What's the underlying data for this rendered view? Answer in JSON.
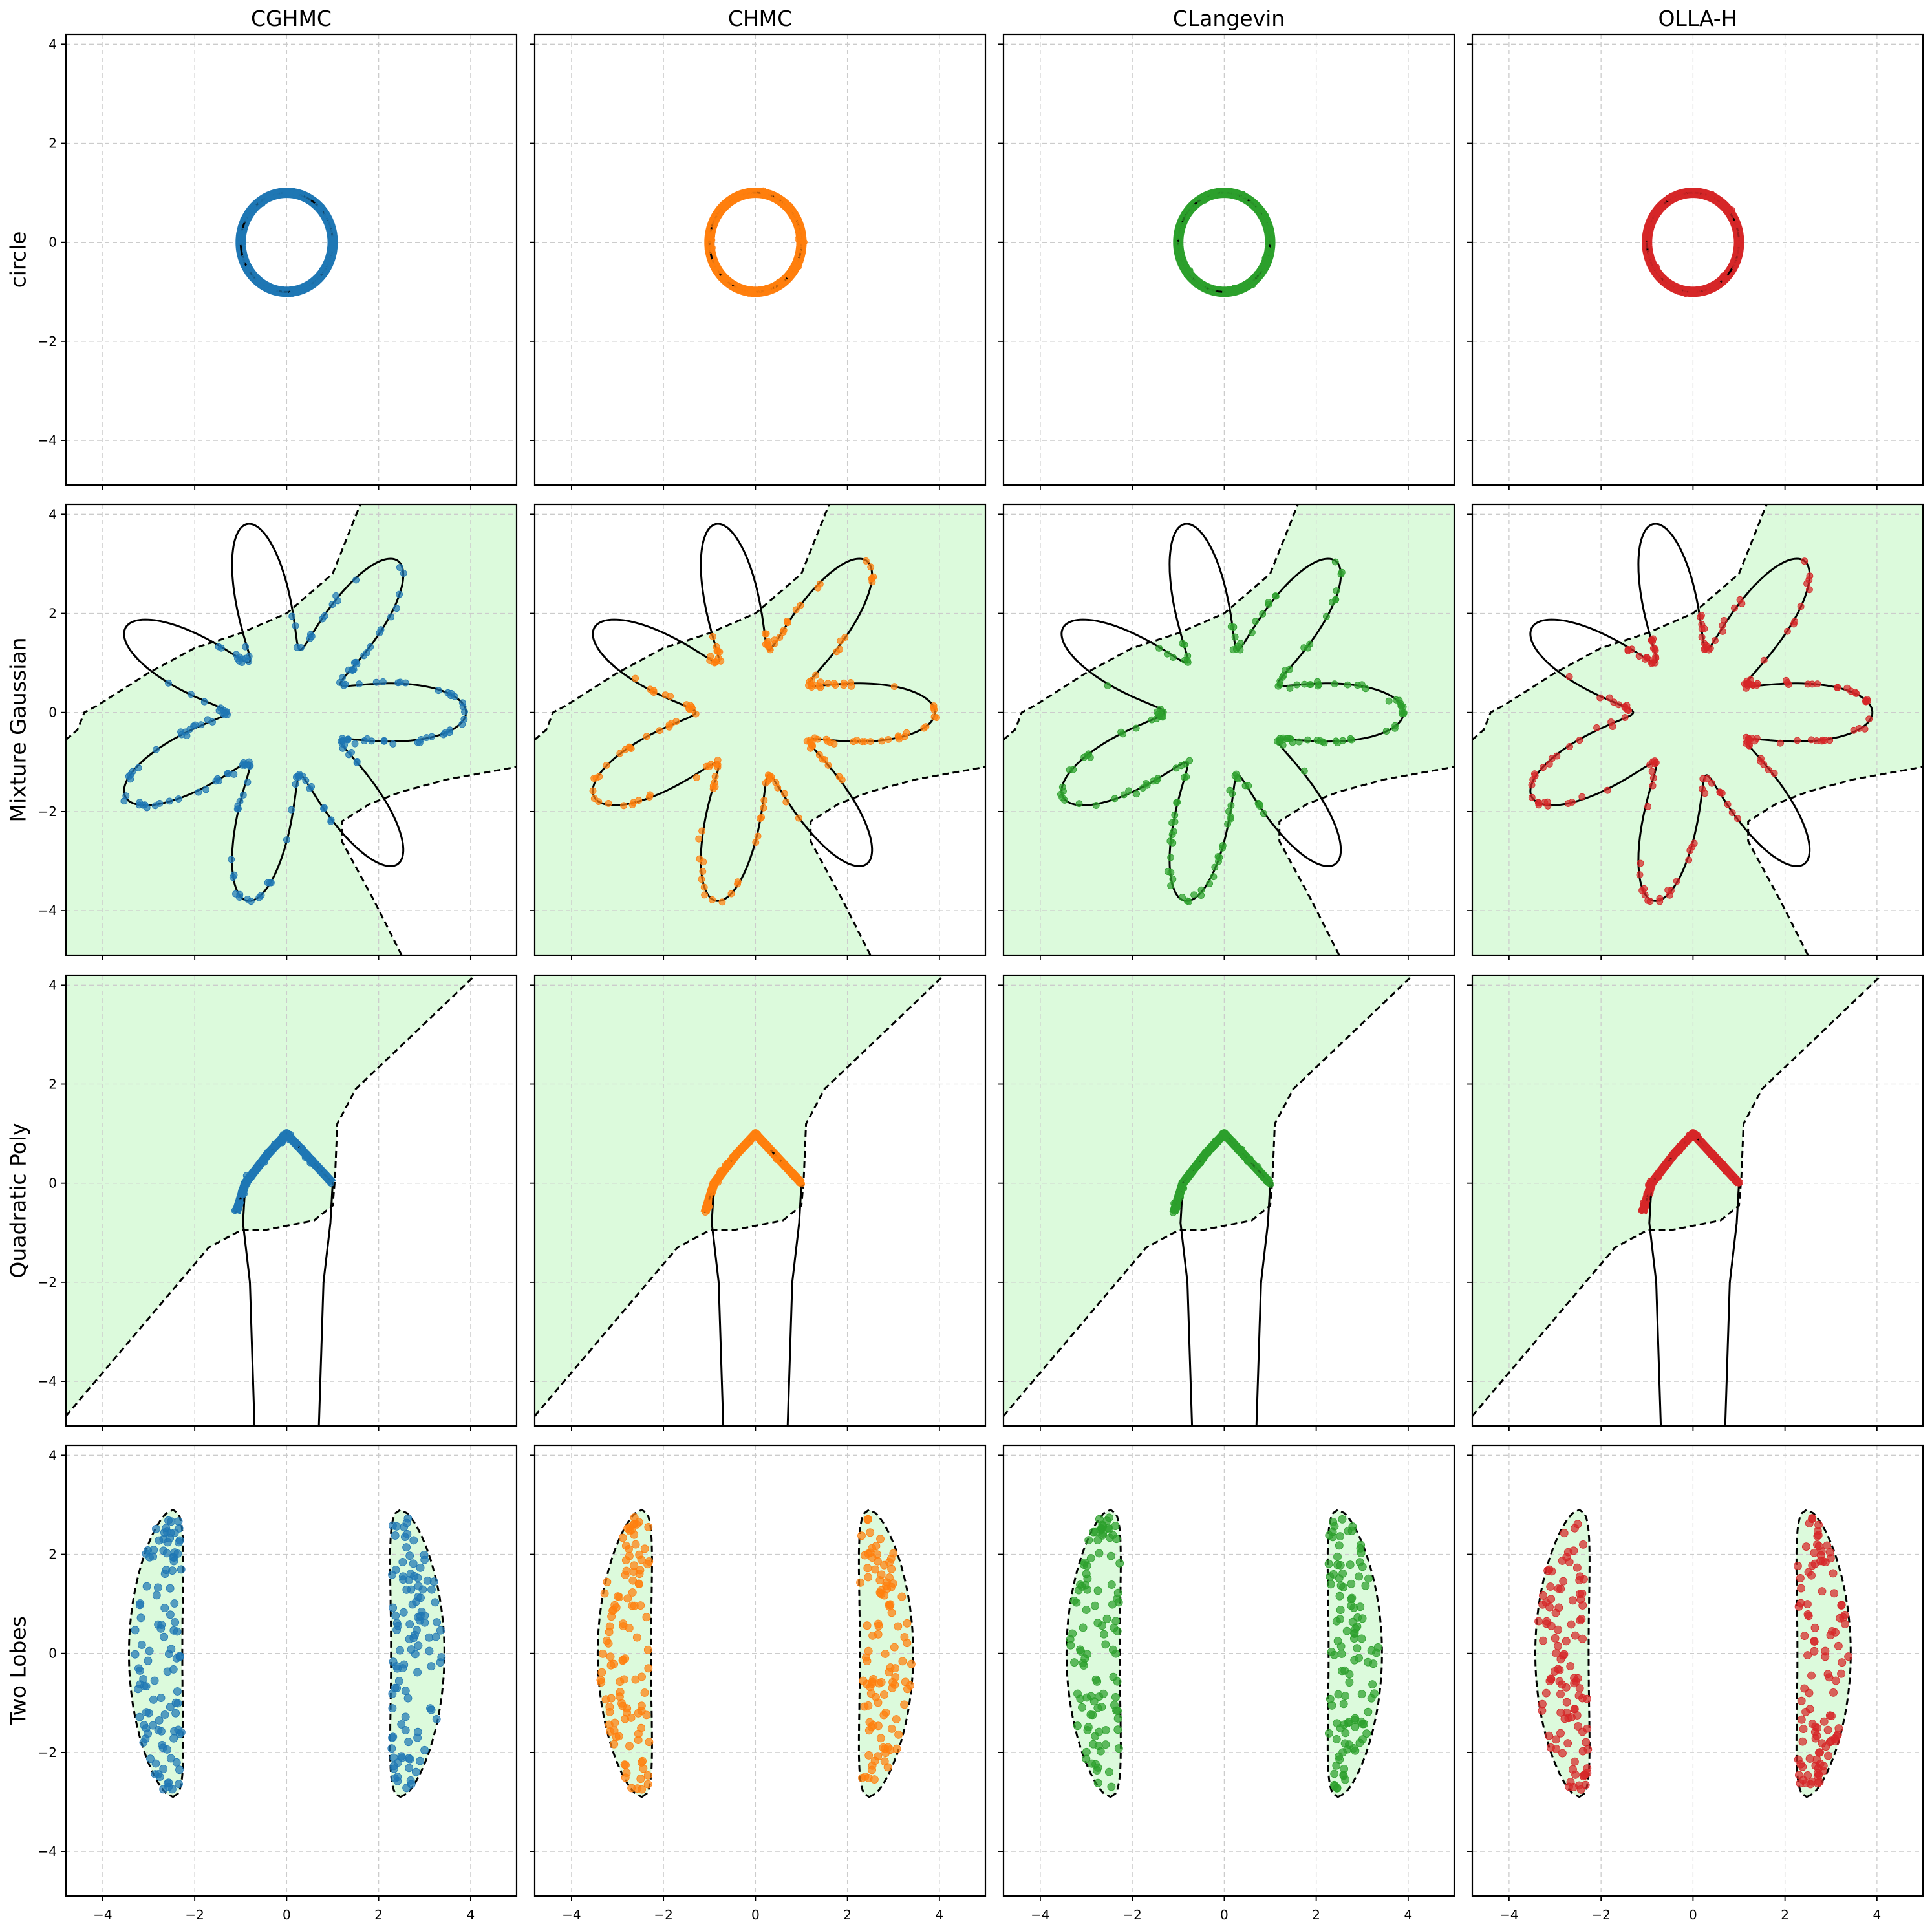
{
  "chart_data": {
    "type": "scatter",
    "layout": "4x4 grid of panels, shared axes",
    "column_titles": [
      "CGHMC",
      "CHMC",
      "CLangevin",
      "OLLA-H"
    ],
    "row_labels": [
      "circle",
      "Mixture Gaussian",
      "Quadratic Poly",
      "Two Lobes"
    ],
    "xlim": [
      -4.8,
      5.0
    ],
    "ylim": [
      -4.9,
      4.2
    ],
    "x_ticks": [
      -4,
      -2,
      0,
      2,
      4
    ],
    "y_ticks": [
      -4,
      -2,
      0,
      2,
      4
    ],
    "x_tick_labels": [
      "−4",
      "−2",
      "0",
      "2",
      "4"
    ],
    "y_tick_labels": [
      "−4",
      "−2",
      "0",
      "2",
      "4"
    ],
    "grid": true,
    "grid_style": "dashed light gray",
    "series_colors": {
      "CGHMC": "#1f77b4",
      "CHMC": "#ff7f0e",
      "CLangevin": "#2ca02c",
      "OLLA-H": "#d62728"
    },
    "feasible_region_fill": "#dcfadc",
    "rows": [
      {
        "name": "circle",
        "constraint": "unit circle x^2 + y^2 = 1 (solid black)",
        "inequality_region": "none",
        "circle_center": [
          0,
          0
        ],
        "circle_radius": 1.0,
        "samples_per_panel": 140,
        "sample_location": "on the unit circle"
      },
      {
        "name": "Mixture Gaussian",
        "constraint": "seven-petal star curve r(t) = 2.6 + 1.3 cos(7t) (solid black)",
        "inequality_region": "green shaded region between two dashed boundary curves",
        "upper_dashed_boundary_points": [
          [
            -4.8,
            -0.55
          ],
          [
            -4.55,
            -0.35
          ],
          [
            -4.4,
            0.0
          ],
          [
            -4.1,
            0.15
          ],
          [
            -3.0,
            0.8
          ],
          [
            -2.0,
            1.3
          ],
          [
            -1.0,
            1.6
          ],
          [
            0.0,
            2.0
          ],
          [
            0.5,
            2.4
          ],
          [
            1.0,
            2.8
          ],
          [
            1.6,
            4.2
          ]
        ],
        "lower_dashed_boundary_points": [
          [
            2.5,
            -4.9
          ],
          [
            1.9,
            -3.8
          ],
          [
            1.2,
            -2.6
          ],
          [
            1.2,
            -2.2
          ],
          [
            1.8,
            -1.85
          ],
          [
            2.5,
            -1.6
          ],
          [
            3.5,
            -1.35
          ],
          [
            5.0,
            -1.1
          ]
        ],
        "samples_per_panel": 180,
        "sample_location": "on the star curve inside the shaded region"
      },
      {
        "name": "Quadratic Poly",
        "constraint": "solid black arch with two descending legs",
        "arch_points": [
          [
            -1.1,
            -0.6
          ],
          [
            -0.9,
            0.0
          ],
          [
            -0.4,
            0.6
          ],
          [
            0.0,
            1.0
          ],
          [
            0.4,
            0.6
          ],
          [
            1.0,
            0.0
          ]
        ],
        "left_leg_points": [
          [
            -0.9,
            0.0
          ],
          [
            -0.95,
            -0.8
          ],
          [
            -0.8,
            -2.0
          ],
          [
            -0.7,
            -4.9
          ]
        ],
        "right_leg_points": [
          [
            1.0,
            0.0
          ],
          [
            0.95,
            -0.8
          ],
          [
            0.8,
            -2.0
          ],
          [
            0.7,
            -4.9
          ]
        ],
        "inequality_region": "green shaded upper-left region bounded by dashed curve",
        "dashed_boundary_points": [
          [
            -4.8,
            -4.7
          ],
          [
            -1.7,
            -1.3
          ],
          [
            -1.0,
            -0.95
          ],
          [
            -0.5,
            -0.95
          ],
          [
            0.6,
            -0.75
          ],
          [
            1.0,
            -0.45
          ],
          [
            1.05,
            0.1
          ],
          [
            1.1,
            1.2
          ],
          [
            1.5,
            1.9
          ],
          [
            4.1,
            4.2
          ]
        ],
        "samples_per_panel": 110,
        "sample_location": "on the arch between x = -1.1 and x = 1.0"
      },
      {
        "name": "Two Lobes",
        "constraint": "none (sampling inside region)",
        "inequality_region": "two banana-shaped lobes with dashed boundaries, green filled",
        "lobe_centers_x": [
          -2.85,
          2.85
        ],
        "lobe_y_range": [
          -2.9,
          2.9
        ],
        "samples_per_panel": 220,
        "sample_location": "uniform inside the lobes"
      }
    ]
  }
}
